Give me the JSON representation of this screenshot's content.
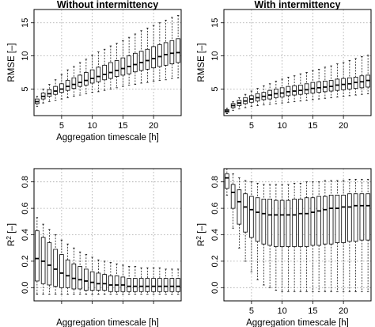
{
  "chart_data": [
    {
      "type": "boxplot",
      "title": "Without intermittency",
      "xlabel": "Aggregation  timescale  [h]",
      "ylabel": "RMSE [–]",
      "ylabel_sup": "",
      "xlim": [
        0.5,
        24.5
      ],
      "ylim": [
        1,
        17
      ],
      "xticks": [
        5,
        10,
        15,
        20
      ],
      "yticks": [
        5,
        10,
        15
      ],
      "show_xtick_labels": true,
      "grid": true,
      "x": [
        1,
        2,
        3,
        4,
        5,
        6,
        7,
        8,
        9,
        10,
        11,
        12,
        13,
        14,
        15,
        16,
        17,
        18,
        19,
        20,
        21,
        22,
        23,
        24
      ],
      "series": [
        {
          "stat": "min",
          "values": [
            2.4,
            2.9,
            3.1,
            3.3,
            3.5,
            3.7,
            3.9,
            4.1,
            4.3,
            4.5,
            4.6,
            4.8,
            5.0,
            5.2,
            5.4,
            5.6,
            5.7,
            5.9,
            6.0,
            6.2,
            6.3,
            6.4,
            6.6,
            6.7
          ]
        },
        {
          "stat": "q1",
          "values": [
            2.8,
            3.5,
            3.9,
            4.2,
            4.5,
            4.8,
            5.1,
            5.4,
            5.6,
            5.9,
            6.1,
            6.4,
            6.6,
            6.9,
            7.1,
            7.3,
            7.6,
            7.8,
            8.0,
            8.2,
            8.4,
            8.6,
            8.8,
            9.0
          ]
        },
        {
          "stat": "median",
          "values": [
            3.1,
            3.9,
            4.3,
            4.7,
            5.0,
            5.4,
            5.7,
            6.0,
            6.3,
            6.6,
            6.9,
            7.2,
            7.5,
            7.8,
            8.1,
            8.4,
            8.7,
            9.0,
            9.3,
            9.6,
            9.9,
            10.2,
            10.4,
            10.5
          ]
        },
        {
          "stat": "q3",
          "values": [
            3.5,
            4.4,
            4.9,
            5.4,
            5.8,
            6.3,
            6.7,
            7.1,
            7.5,
            7.9,
            8.3,
            8.6,
            9.0,
            9.3,
            9.7,
            10.0,
            10.4,
            10.7,
            11.0,
            11.4,
            11.7,
            12.0,
            12.3,
            12.6
          ]
        },
        {
          "stat": "max",
          "values": [
            3.9,
            5.0,
            5.7,
            6.4,
            7.2,
            7.9,
            8.4,
            9.0,
            9.5,
            10.1,
            10.6,
            11.0,
            11.5,
            11.9,
            12.3,
            12.8,
            13.3,
            13.8,
            14.2,
            14.6,
            15.0,
            15.4,
            15.8,
            16.1
          ]
        }
      ]
    },
    {
      "type": "boxplot",
      "title": "With intermittency",
      "xlabel": "",
      "ylabel": "RMSE [–]",
      "ylabel_sup": "",
      "xlim": [
        0.5,
        24.5
      ],
      "ylim": [
        1,
        17
      ],
      "xticks": [
        5,
        10,
        15,
        20
      ],
      "yticks": [
        5,
        10,
        15
      ],
      "show_xtick_labels": true,
      "grid": true,
      "x": [
        1,
        2,
        3,
        4,
        5,
        6,
        7,
        8,
        9,
        10,
        11,
        12,
        13,
        14,
        15,
        16,
        17,
        18,
        19,
        20,
        21,
        22,
        23,
        24
      ],
      "series": [
        {
          "stat": "min",
          "values": [
            1.3,
            1.8,
            2.0,
            2.2,
            2.4,
            2.5,
            2.6,
            2.7,
            2.8,
            2.9,
            3.0,
            3.1,
            3.2,
            3.3,
            3.4,
            3.5,
            3.6,
            3.7,
            3.8,
            3.9,
            4.0,
            4.1,
            4.2,
            4.3
          ]
        },
        {
          "stat": "q1",
          "values": [
            1.5,
            2.2,
            2.5,
            2.8,
            3.0,
            3.2,
            3.4,
            3.5,
            3.7,
            3.8,
            4.0,
            4.1,
            4.2,
            4.3,
            4.4,
            4.5,
            4.6,
            4.7,
            4.8,
            4.9,
            5.0,
            5.1,
            5.2,
            5.3
          ]
        },
        {
          "stat": "median",
          "values": [
            1.7,
            2.5,
            2.9,
            3.2,
            3.5,
            3.7,
            3.9,
            4.1,
            4.3,
            4.4,
            4.6,
            4.7,
            4.8,
            4.9,
            5.1,
            5.2,
            5.3,
            5.4,
            5.6,
            5.7,
            5.8,
            6.0,
            6.1,
            6.3
          ]
        },
        {
          "stat": "q3",
          "values": [
            1.9,
            2.8,
            3.3,
            3.7,
            4.0,
            4.3,
            4.5,
            4.8,
            5.0,
            5.2,
            5.4,
            5.5,
            5.6,
            5.8,
            6.0,
            6.1,
            6.2,
            6.3,
            6.5,
            6.6,
            6.7,
            6.8,
            7.0,
            7.1
          ]
        },
        {
          "stat": "max",
          "values": [
            2.1,
            3.1,
            3.7,
            4.2,
            4.7,
            5.1,
            5.5,
            5.8,
            6.2,
            6.5,
            6.8,
            7.0,
            7.3,
            7.5,
            7.8,
            8.0,
            8.3,
            8.5,
            8.8,
            9.0,
            9.3,
            9.6,
            9.9,
            10.1
          ]
        }
      ]
    },
    {
      "type": "boxplot",
      "title": "",
      "xlabel": "Aggregation  timescale  [h]",
      "ylabel": "R",
      "ylabel_sup": "2",
      "ylabel_suffix": " [–]",
      "xlim": [
        0.5,
        24.5
      ],
      "ylim": [
        -0.1,
        0.9
      ],
      "xticks": [
        5,
        10,
        15,
        20
      ],
      "yticks": [
        0.0,
        0.2,
        0.4,
        0.6,
        0.8
      ],
      "show_xtick_labels": false,
      "grid": true,
      "x": [
        1,
        2,
        3,
        4,
        5,
        6,
        7,
        8,
        9,
        10,
        11,
        12,
        13,
        14,
        15,
        16,
        17,
        18,
        19,
        20,
        21,
        22,
        23,
        24
      ],
      "series": [
        {
          "stat": "min",
          "values": [
            -0.05,
            -0.05,
            -0.05,
            -0.05,
            -0.05,
            -0.05,
            -0.05,
            -0.05,
            -0.05,
            -0.05,
            -0.05,
            -0.05,
            -0.05,
            -0.05,
            -0.05,
            -0.05,
            -0.05,
            -0.05,
            -0.05,
            -0.05,
            -0.05,
            -0.05,
            -0.05,
            -0.05
          ]
        },
        {
          "stat": "q1",
          "values": [
            0.05,
            0.03,
            0.02,
            0.01,
            0.0,
            0.0,
            -0.01,
            -0.01,
            -0.02,
            -0.02,
            -0.02,
            -0.02,
            -0.03,
            -0.03,
            -0.03,
            -0.03,
            -0.03,
            -0.03,
            -0.03,
            -0.03,
            -0.03,
            -0.03,
            -0.03,
            -0.03
          ]
        },
        {
          "stat": "median",
          "values": [
            0.22,
            0.2,
            0.17,
            0.14,
            0.11,
            0.09,
            0.07,
            0.06,
            0.05,
            0.04,
            0.03,
            0.03,
            0.02,
            0.02,
            0.02,
            0.01,
            0.01,
            0.01,
            0.01,
            0.01,
            0.01,
            0.01,
            0.01,
            0.01
          ]
        },
        {
          "stat": "q3",
          "values": [
            0.43,
            0.38,
            0.34,
            0.29,
            0.25,
            0.21,
            0.18,
            0.16,
            0.14,
            0.12,
            0.11,
            0.1,
            0.09,
            0.09,
            0.08,
            0.07,
            0.07,
            0.07,
            0.07,
            0.07,
            0.07,
            0.07,
            0.07,
            0.07
          ]
        },
        {
          "stat": "max",
          "values": [
            0.53,
            0.48,
            0.44,
            0.4,
            0.36,
            0.33,
            0.3,
            0.27,
            0.25,
            0.23,
            0.21,
            0.2,
            0.19,
            0.18,
            0.17,
            0.16,
            0.16,
            0.15,
            0.15,
            0.15,
            0.15,
            0.14,
            0.14,
            0.14
          ]
        }
      ]
    },
    {
      "type": "boxplot",
      "title": "",
      "xlabel": "Aggregation  timescale  [h]",
      "ylabel": "R",
      "ylabel_sup": "2",
      "ylabel_suffix": " [–]",
      "xlim": [
        0.5,
        24.5
      ],
      "ylim": [
        -0.1,
        0.9
      ],
      "xticks": [
        5,
        10,
        15,
        20
      ],
      "yticks": [
        0.0,
        0.2,
        0.4,
        0.6,
        0.8
      ],
      "show_xtick_labels": true,
      "grid": true,
      "x": [
        1,
        2,
        3,
        4,
        5,
        6,
        7,
        8,
        9,
        10,
        11,
        12,
        13,
        14,
        15,
        16,
        17,
        18,
        19,
        20,
        21,
        22,
        23,
        24
      ],
      "series": [
        {
          "stat": "min",
          "values": [
            0.7,
            0.45,
            0.3,
            0.2,
            0.12,
            0.06,
            0.02,
            0.0,
            -0.02,
            -0.03,
            -0.03,
            -0.03,
            -0.03,
            -0.03,
            -0.03,
            -0.03,
            -0.03,
            -0.03,
            -0.03,
            -0.03,
            -0.03,
            -0.03,
            -0.03,
            -0.03
          ]
        },
        {
          "stat": "q1",
          "values": [
            0.75,
            0.6,
            0.48,
            0.42,
            0.38,
            0.35,
            0.33,
            0.32,
            0.31,
            0.31,
            0.31,
            0.31,
            0.31,
            0.31,
            0.32,
            0.32,
            0.33,
            0.33,
            0.34,
            0.34,
            0.35,
            0.35,
            0.36,
            0.36
          ]
        },
        {
          "stat": "median",
          "values": [
            0.83,
            0.72,
            0.65,
            0.61,
            0.59,
            0.57,
            0.56,
            0.55,
            0.55,
            0.55,
            0.55,
            0.55,
            0.56,
            0.56,
            0.57,
            0.58,
            0.59,
            0.6,
            0.6,
            0.61,
            0.61,
            0.62,
            0.62,
            0.62
          ]
        },
        {
          "stat": "q3",
          "values": [
            0.86,
            0.78,
            0.74,
            0.71,
            0.69,
            0.68,
            0.67,
            0.67,
            0.66,
            0.66,
            0.66,
            0.67,
            0.67,
            0.68,
            0.68,
            0.69,
            0.69,
            0.7,
            0.7,
            0.7,
            0.71,
            0.71,
            0.71,
            0.71
          ]
        },
        {
          "stat": "max",
          "values": [
            0.9,
            0.86,
            0.83,
            0.81,
            0.8,
            0.79,
            0.78,
            0.78,
            0.78,
            0.78,
            0.78,
            0.79,
            0.79,
            0.8,
            0.8,
            0.8,
            0.81,
            0.81,
            0.81,
            0.81,
            0.82,
            0.82,
            0.82,
            0.82
          ]
        }
      ]
    }
  ]
}
